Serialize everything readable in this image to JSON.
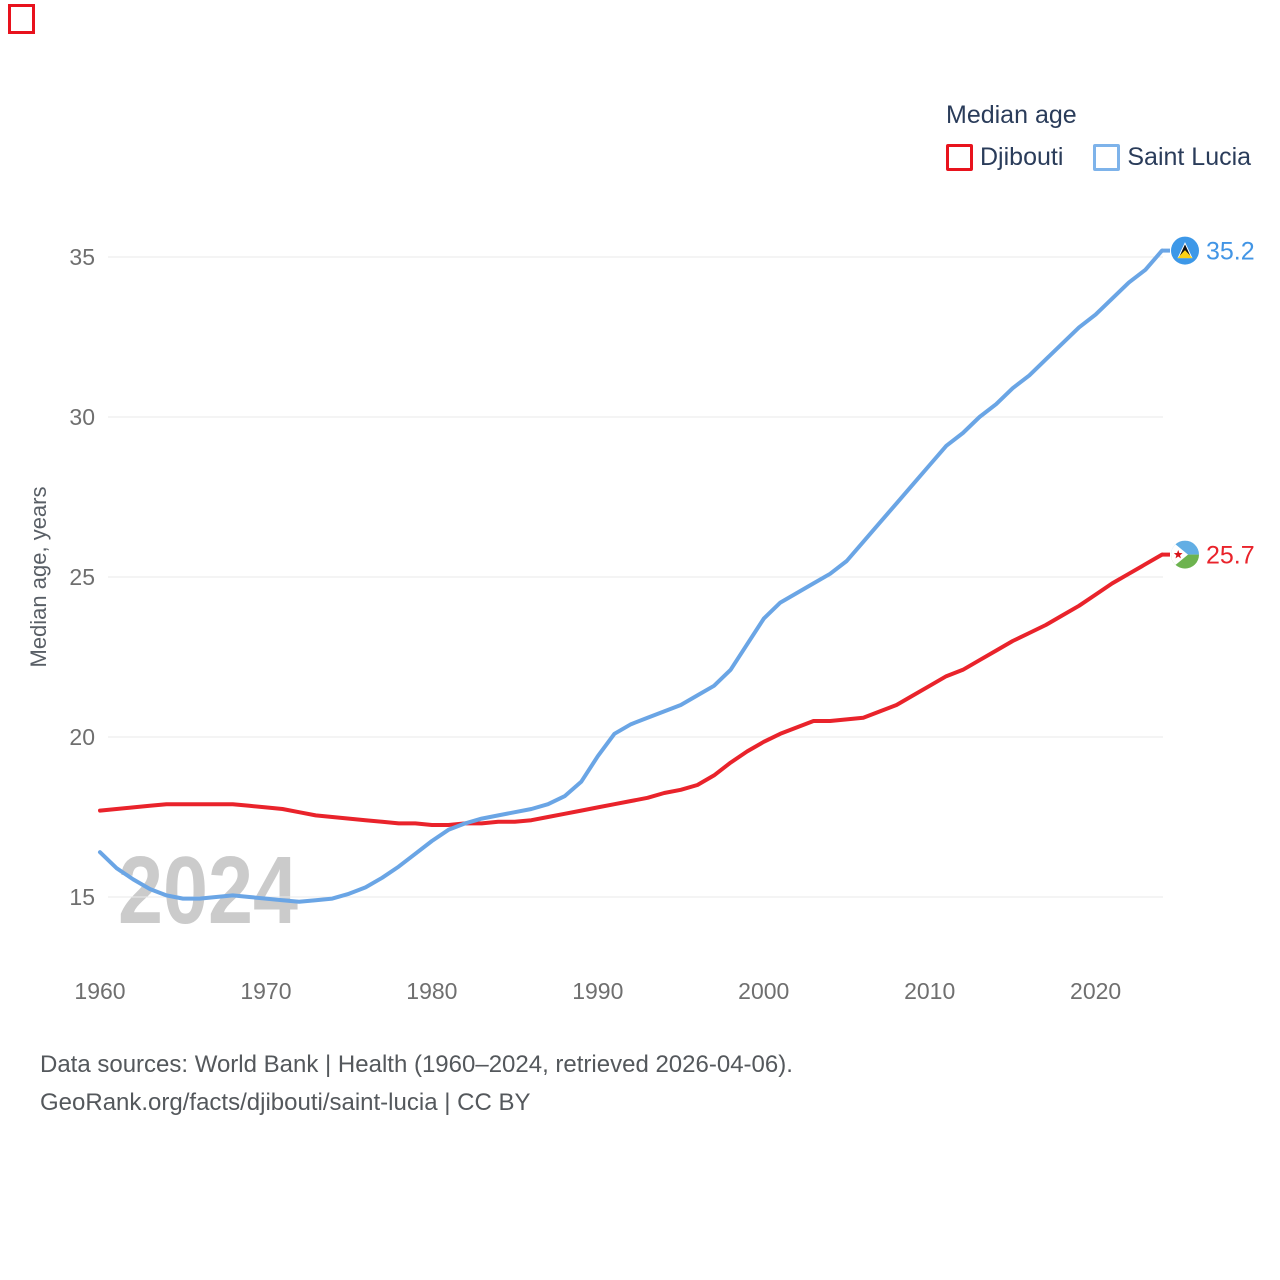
{
  "legend": {
    "title": "Median age",
    "series": [
      {
        "label": "Djibouti",
        "swatch_color": "#e8131d"
      },
      {
        "label": "Saint Lucia",
        "swatch_color": "#7eb3ea"
      }
    ]
  },
  "footer": {
    "line1": "Data sources: World Bank | Health (1960–2024, retrieved 2026-04-06).",
    "line2": "GeoRank.org/facts/djibouti/saint-lucia | CC BY"
  },
  "chart_data": {
    "type": "line",
    "title": "Median age",
    "xlabel": "",
    "ylabel": "Median age, years",
    "watermark": "2024",
    "x_range": [
      1960,
      2024
    ],
    "y_range": [
      15,
      35
    ],
    "x_ticks": [
      1960,
      1970,
      1980,
      1990,
      2000,
      2010,
      2020
    ],
    "y_ticks": [
      15,
      20,
      25,
      30,
      35
    ],
    "grid": true,
    "legend_position": "top-right",
    "years": [
      1960,
      1961,
      1962,
      1963,
      1964,
      1965,
      1966,
      1967,
      1968,
      1969,
      1970,
      1971,
      1972,
      1973,
      1974,
      1975,
      1976,
      1977,
      1978,
      1979,
      1980,
      1981,
      1982,
      1983,
      1984,
      1985,
      1986,
      1987,
      1988,
      1989,
      1990,
      1991,
      1992,
      1993,
      1994,
      1995,
      1996,
      1997,
      1998,
      1999,
      2000,
      2001,
      2002,
      2003,
      2004,
      2005,
      2006,
      2007,
      2008,
      2009,
      2010,
      2011,
      2012,
      2013,
      2014,
      2015,
      2016,
      2017,
      2018,
      2019,
      2020,
      2021,
      2022,
      2023,
      2024
    ],
    "series": [
      {
        "name": "Djibouti",
        "color": "#e9232b",
        "label_color": "#e9232b",
        "end_label": "25.7",
        "flag": "djibouti",
        "values": [
          17.7,
          17.75,
          17.8,
          17.85,
          17.9,
          17.9,
          17.9,
          17.9,
          17.9,
          17.85,
          17.8,
          17.75,
          17.65,
          17.55,
          17.5,
          17.45,
          17.4,
          17.35,
          17.3,
          17.3,
          17.25,
          17.25,
          17.3,
          17.3,
          17.35,
          17.35,
          17.4,
          17.5,
          17.6,
          17.7,
          17.8,
          17.9,
          18.0,
          18.1,
          18.25,
          18.35,
          18.5,
          18.8,
          19.2,
          19.55,
          19.85,
          20.1,
          20.3,
          20.5,
          20.5,
          20.55,
          20.6,
          20.8,
          21.0,
          21.3,
          21.6,
          21.9,
          22.1,
          22.4,
          22.7,
          23.0,
          23.25,
          23.5,
          23.8,
          24.1,
          24.45,
          24.8,
          25.1,
          25.4,
          25.7
        ]
      },
      {
        "name": "Saint Lucia",
        "color": "#6aa5e5",
        "label_color": "#4295e5",
        "end_label": "35.2",
        "flag": "saint-lucia",
        "values": [
          16.4,
          15.9,
          15.55,
          15.25,
          15.05,
          14.95,
          14.95,
          15.0,
          15.05,
          15.0,
          14.95,
          14.9,
          14.85,
          14.9,
          14.95,
          15.1,
          15.3,
          15.6,
          15.95,
          16.35,
          16.75,
          17.1,
          17.3,
          17.45,
          17.55,
          17.65,
          17.75,
          17.9,
          18.15,
          18.6,
          19.4,
          20.1,
          20.4,
          20.6,
          20.8,
          21.0,
          21.3,
          21.6,
          22.1,
          22.9,
          23.7,
          24.2,
          24.5,
          24.8,
          25.1,
          25.5,
          26.1,
          26.7,
          27.3,
          27.9,
          28.5,
          29.1,
          29.5,
          30.0,
          30.4,
          30.9,
          31.3,
          31.8,
          32.3,
          32.8,
          33.2,
          33.7,
          34.2,
          34.6,
          35.2
        ]
      }
    ]
  }
}
